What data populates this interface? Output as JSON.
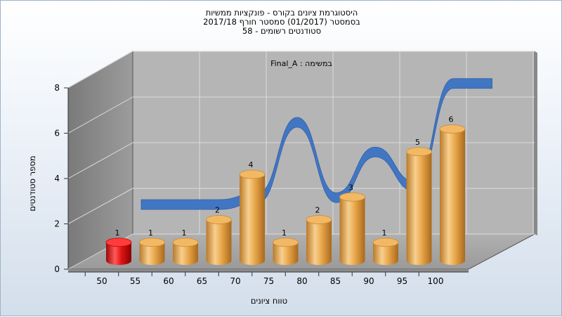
{
  "titles": [
    "היסטוגרמת ציונים בקורס - פונקציות ממשיות",
    "בסמסטר  (01/2017)  סמסטר חורף 2017/18",
    "סטודנטים רשומים - 58"
  ],
  "task_label": "במשימה : Final_A",
  "colors": {
    "bar": "#eaa84c",
    "highlight_bar": "#dd1111",
    "ribbon": "#3b73c4",
    "wall": "#b5b5b5"
  },
  "chart_data": {
    "type": "bar",
    "xlabel": "טווח ציונים",
    "ylabel": "מספר סטודנטים",
    "ylim": [
      0,
      8
    ],
    "y_ticks": [
      0,
      2,
      4,
      6,
      8
    ],
    "x_tick_labels": [
      "50",
      "55",
      "60",
      "65",
      "70",
      "75",
      "80",
      "85",
      "90",
      "95",
      "100"
    ],
    "categories": [
      "50-55",
      "55-60",
      "60-65",
      "65-70",
      "70-75",
      "75-80",
      "80-85",
      "85-90",
      "90-95",
      "95-100",
      "100"
    ],
    "values": [
      1,
      1,
      1,
      2,
      4,
      1,
      2,
      3,
      1,
      5,
      6
    ],
    "highlight_index": 0,
    "ribbon_values": [
      1.2,
      1.2,
      1.2,
      1.5,
      4.8,
      1.5,
      3.5,
      2.0,
      6.5,
      6.5
    ]
  }
}
